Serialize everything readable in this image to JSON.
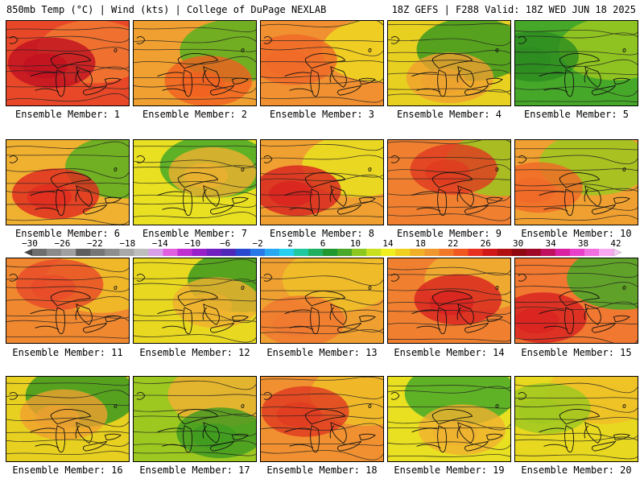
{
  "header": {
    "left": "850mb Temp (°C) | Wind (kts) | College of DuPage NEXLAB",
    "right": "18Z GEFS | F288 Valid: 18Z WED JUN 18 2025"
  },
  "label_prefix": "Ensemble Member: ",
  "members": [
    {
      "number": "1",
      "base": "#e84828",
      "accent": "#c01020",
      "edge": "#f07830"
    },
    {
      "number": "2",
      "base": "#f0a030",
      "accent": "#f06020",
      "edge": "#5ab020"
    },
    {
      "number": "3",
      "base": "#f09030",
      "accent": "#f06828",
      "edge": "#f0d820"
    },
    {
      "number": "4",
      "base": "#e8d020",
      "accent": "#f0a030",
      "edge": "#3c9a20"
    },
    {
      "number": "5",
      "base": "#46a828",
      "accent": "#2c8c20",
      "edge": "#9cc820"
    },
    {
      "number": "6",
      "base": "#f0b030",
      "accent": "#e02820",
      "edge": "#5ab020"
    },
    {
      "number": "7",
      "base": "#e8e020",
      "accent": "#f0b030",
      "edge": "#46a828"
    },
    {
      "number": "8",
      "base": "#f0a030",
      "accent": "#d82020",
      "edge": "#e8e020"
    },
    {
      "number": "9",
      "base": "#f08030",
      "accent": "#e03820",
      "edge": "#9cc820"
    },
    {
      "number": "10",
      "base": "#f0a030",
      "accent": "#f06828",
      "edge": "#9cc820"
    },
    {
      "number": "11",
      "base": "#f08830",
      "accent": "#e84828",
      "edge": "#f0c028"
    },
    {
      "number": "12",
      "base": "#e8d820",
      "accent": "#f0b030",
      "edge": "#3c9a20"
    },
    {
      "number": "13",
      "base": "#f0a030",
      "accent": "#f07830",
      "edge": "#f0c028"
    },
    {
      "number": "14",
      "base": "#f08030",
      "accent": "#d82020",
      "edge": "#f0b030"
    },
    {
      "number": "15",
      "base": "#f07830",
      "accent": "#d82020",
      "edge": "#46a828"
    },
    {
      "number": "16",
      "base": "#e8d020",
      "accent": "#f0a030",
      "edge": "#3c9a20"
    },
    {
      "number": "17",
      "base": "#9cc820",
      "accent": "#3c9a20",
      "edge": "#f0b030"
    },
    {
      "number": "18",
      "base": "#f09030",
      "accent": "#e03820",
      "edge": "#f0c028"
    },
    {
      "number": "19",
      "base": "#e8e020",
      "accent": "#f0b030",
      "edge": "#46a828"
    },
    {
      "number": "20",
      "base": "#e8d820",
      "accent": "#9cc820",
      "edge": "#f0c028"
    }
  ],
  "colorbar": {
    "ticks": [
      "−30",
      "−26",
      "−22",
      "−18",
      "−14",
      "−10",
      "−6",
      "−2",
      "2",
      "6",
      "10",
      "14",
      "18",
      "22",
      "26",
      "30",
      "34",
      "38",
      "42"
    ],
    "colors": [
      "#6e6e6e",
      "#8a8a8a",
      "#a0a0a0",
      "#5e5e5e",
      "#767676",
      "#8e8e8e",
      "#a8a8a8",
      "#bebebe",
      "#d8a0e8",
      "#e060e0",
      "#c030d0",
      "#9820c8",
      "#7020c0",
      "#5028b8",
      "#2848d0",
      "#2878e8",
      "#28a8f0",
      "#28d0f0",
      "#20c8a0",
      "#20b060",
      "#209830",
      "#4aa828",
      "#8cc820",
      "#c8e020",
      "#f0f020",
      "#f0d020",
      "#f0b028",
      "#f09830",
      "#f07828",
      "#f05820",
      "#e83020",
      "#d01818",
      "#b01010",
      "#900810",
      "#a00828",
      "#c01060",
      "#d820a0",
      "#e840c8",
      "#f070e0",
      "#f8a8f0"
    ]
  }
}
